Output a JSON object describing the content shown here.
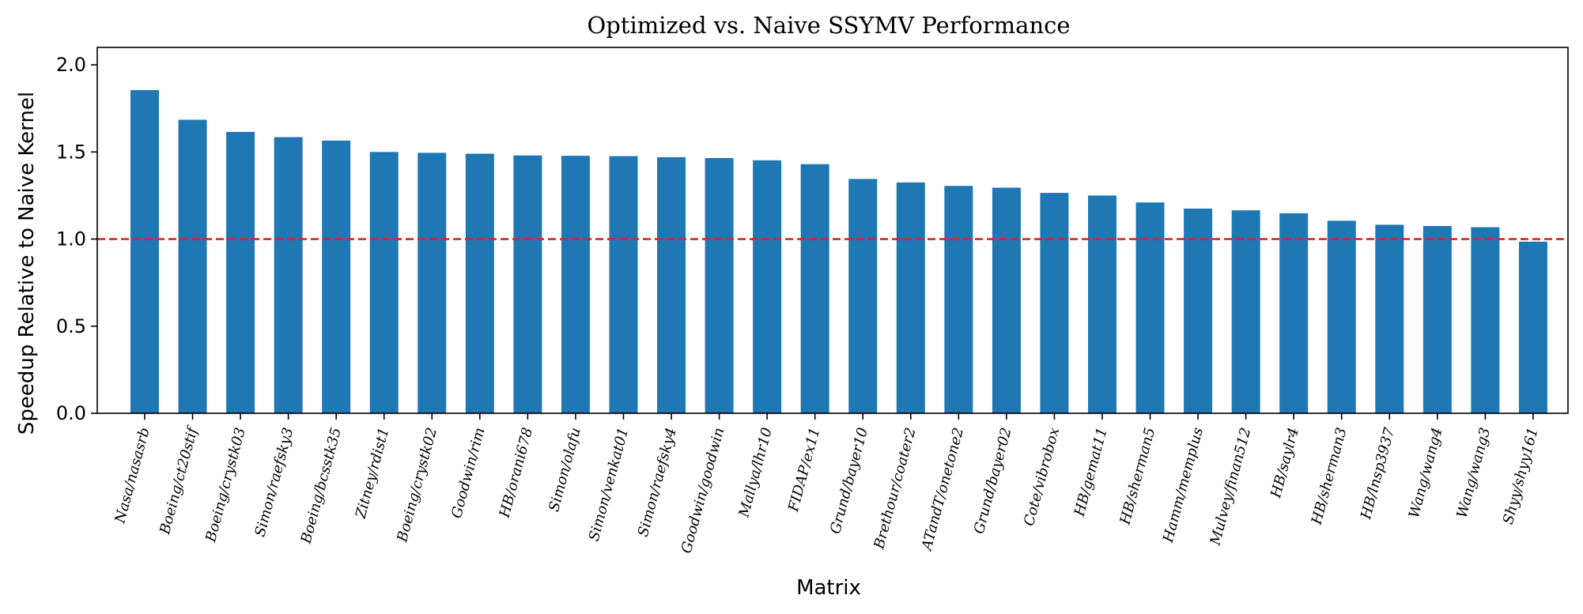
{
  "chart_data": {
    "type": "bar",
    "title": "Optimized vs. Naive SSYMV Performance",
    "xlabel": "Matrix",
    "ylabel": "Speedup Relative to Naive Kernel",
    "categories": [
      "Nasa/nasasrb",
      "Boeing/ct20stif",
      "Boeing/crystk03",
      "Simon/raefsky3",
      "Boeing/bcsstk35",
      "Zitney/rdist1",
      "Boeing/crystk02",
      "Goodwin/rim",
      "HB/orani678",
      "Simon/olafu",
      "Simon/venkat01",
      "Simon/raefsky4",
      "Goodwin/goodwin",
      "Mallya/lhr10",
      "FIDAP/ex11",
      "Grund/bayer10",
      "Brethour/coater2",
      "ATandT/onetone2",
      "Grund/bayer02",
      "Cote/vibrobox",
      "HB/gemat11",
      "HB/sherman5",
      "Hamm/memplus",
      "Mulvey/finan512",
      "HB/saylr4",
      "HB/sherman3",
      "HB/lnsp3937",
      "Wang/wang4",
      "Wang/wang3",
      "Shyy/shyy161"
    ],
    "values": [
      1.855,
      1.685,
      1.615,
      1.585,
      1.565,
      1.5,
      1.495,
      1.49,
      1.48,
      1.478,
      1.476,
      1.47,
      1.465,
      1.452,
      1.43,
      1.345,
      1.325,
      1.305,
      1.295,
      1.265,
      1.25,
      1.21,
      1.175,
      1.165,
      1.148,
      1.105,
      1.082,
      1.075,
      1.068,
      0.985
    ],
    "ylim": [
      0,
      2.1
    ],
    "yticks": [
      "0.0",
      "0.5",
      "1.0",
      "1.5",
      "2.0"
    ],
    "reference_line": 1.0,
    "bar_color": "#1f77b4",
    "reference_line_color": "#d62728",
    "grid": false,
    "legend": "none"
  }
}
